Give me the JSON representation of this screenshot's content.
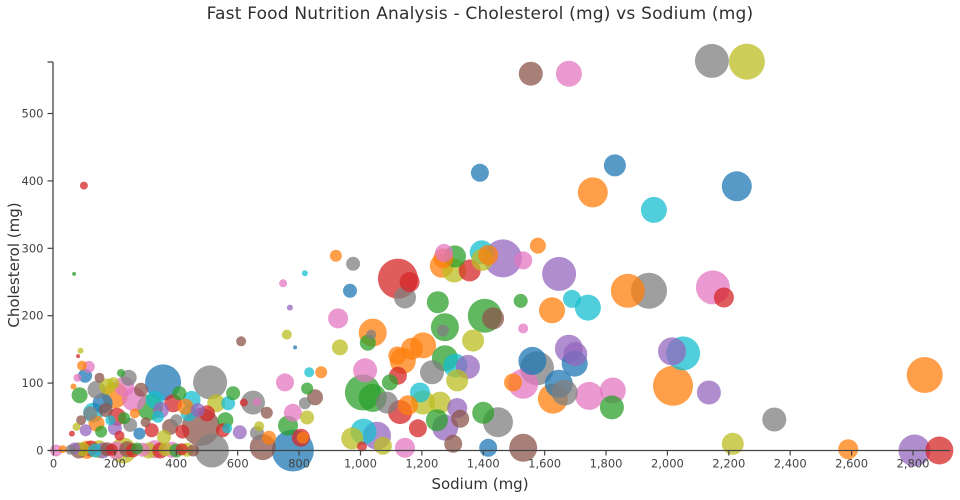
{
  "title": "Fast Food Nutrition Analysis - Cholesterol (mg) vs Sodium (mg)",
  "chart_data": {
    "type": "scatter",
    "subtype": "bubble",
    "title": "Fast Food Nutrition Analysis - Cholesterol (mg) vs Sodium (mg)",
    "xlabel": "Sodium (mg)",
    "ylabel": "Cholesterol (mg)",
    "xlim": [
      0,
      2920
    ],
    "ylim": [
      0,
      590
    ],
    "x_ticks": [
      0,
      200,
      400,
      600,
      800,
      1000,
      1200,
      1400,
      1600,
      1800,
      2000,
      2200,
      2400,
      2600,
      2800
    ],
    "y_ticks": [
      0,
      100,
      200,
      300,
      400,
      500
    ],
    "grid": false,
    "legend_position": "none",
    "marker_opacity": 0.75,
    "axis_color": "#444444",
    "tick_label_color": "#444444",
    "palette": [
      "#1f77b4",
      "#ff7f0e",
      "#2ca02c",
      "#d62728",
      "#9467bd",
      "#8c564b",
      "#e377c2",
      "#7f7f7f",
      "#bcbd22",
      "#17becf"
    ],
    "point_format": "[sodium_mg, cholesterol_mg, marker_radius_px, palette_color_index]",
    "points": [
      [
        99,
        393,
        4,
        3
      ],
      [
        1555,
        559,
        12,
        5
      ],
      [
        1679,
        559,
        13,
        6
      ],
      [
        2145,
        578,
        17,
        7
      ],
      [
        2259,
        577,
        18,
        8
      ],
      [
        1389,
        412,
        9,
        0
      ],
      [
        1829,
        423,
        11,
        0
      ],
      [
        1757,
        383,
        15,
        1
      ],
      [
        1956,
        357,
        13,
        9
      ],
      [
        2226,
        392,
        15,
        0
      ],
      [
        920,
        289,
        6,
        1
      ],
      [
        976,
        277,
        7,
        7
      ],
      [
        819,
        263,
        3,
        9
      ],
      [
        748,
        248,
        4,
        6
      ],
      [
        770,
        212,
        3,
        4
      ],
      [
        67,
        262,
        2,
        2
      ],
      [
        966,
        237,
        7,
        0
      ],
      [
        927,
        196,
        10,
        6
      ],
      [
        1040,
        175,
        14,
        1
      ],
      [
        1035,
        172,
        5,
        7
      ],
      [
        1122,
        255,
        20,
        3
      ],
      [
        1160,
        250,
        10,
        3
      ],
      [
        1145,
        227,
        11,
        7
      ],
      [
        1252,
        220,
        11,
        2
      ],
      [
        1265,
        274,
        12,
        1
      ],
      [
        1305,
        267,
        12,
        8
      ],
      [
        1356,
        267,
        11,
        3
      ],
      [
        1395,
        294,
        12,
        9
      ],
      [
        1464,
        285,
        19,
        4
      ],
      [
        1270,
        285,
        10,
        1
      ],
      [
        1308,
        288,
        11,
        2
      ],
      [
        1272,
        293,
        9,
        6
      ],
      [
        1397,
        283,
        11,
        8
      ],
      [
        1416,
        290,
        10,
        1
      ],
      [
        1405,
        200,
        17,
        2
      ],
      [
        1432,
        196,
        11,
        5
      ],
      [
        1522,
        222,
        7,
        2
      ],
      [
        1578,
        304,
        8,
        1
      ],
      [
        1530,
        282,
        9,
        6
      ],
      [
        1647,
        262,
        17,
        4
      ],
      [
        1624,
        208,
        13,
        1
      ],
      [
        1689,
        225,
        9,
        9
      ],
      [
        1741,
        212,
        13,
        9
      ],
      [
        1871,
        237,
        17,
        1
      ],
      [
        1940,
        237,
        18,
        7
      ],
      [
        2148,
        242,
        17,
        6
      ],
      [
        2184,
        227,
        10,
        3
      ],
      [
        760,
        172,
        5,
        8
      ],
      [
        611,
        162,
        5,
        5
      ],
      [
        933,
        153,
        8,
        8
      ],
      [
        1024,
        160,
        8,
        2
      ],
      [
        1168,
        151,
        11,
        1
      ],
      [
        1204,
        156,
        13,
        1
      ],
      [
        1275,
        183,
        14,
        2
      ],
      [
        1269,
        178,
        6,
        7
      ],
      [
        1367,
        163,
        11,
        8
      ],
      [
        1530,
        181,
        5,
        6
      ],
      [
        1679,
        151,
        14,
        4
      ],
      [
        1700,
        143,
        12,
        4
      ],
      [
        2051,
        144,
        17,
        9
      ],
      [
        2015,
        147,
        14,
        4
      ],
      [
        1698,
        129,
        13,
        0
      ],
      [
        1575,
        122,
        17,
        7
      ],
      [
        1560,
        133,
        14,
        0
      ],
      [
        1138,
        133,
        13,
        1
      ],
      [
        1120,
        141,
        9,
        1
      ],
      [
        1275,
        137,
        13,
        2
      ],
      [
        1309,
        126,
        12,
        9
      ],
      [
        1233,
        116,
        12,
        7
      ],
      [
        1350,
        124,
        12,
        4
      ],
      [
        1315,
        104,
        11,
        8
      ],
      [
        1015,
        119,
        12,
        6
      ],
      [
        1122,
        111,
        9,
        3
      ],
      [
        1096,
        101,
        8,
        2
      ],
      [
        787,
        153,
        2,
        0
      ],
      [
        833,
        116,
        5,
        9
      ],
      [
        872,
        116,
        6,
        1
      ],
      [
        754,
        101,
        9,
        6
      ],
      [
        1194,
        86,
        10,
        9
      ],
      [
        1204,
        71,
        12,
        8
      ],
      [
        1086,
        71,
        11,
        7
      ],
      [
        1155,
        67,
        10,
        1
      ],
      [
        1259,
        71,
        11,
        8
      ],
      [
        1129,
        57,
        12,
        3
      ],
      [
        1249,
        45,
        11,
        2
      ],
      [
        1276,
        34,
        13,
        4
      ],
      [
        1448,
        42,
        15,
        7
      ],
      [
        1400,
        56,
        11,
        2
      ],
      [
        1315,
        63,
        10,
        4
      ],
      [
        1325,
        47,
        9,
        5
      ],
      [
        1187,
        33,
        9,
        3
      ],
      [
        852,
        79,
        8,
        5
      ],
      [
        826,
        49,
        7,
        8
      ],
      [
        780,
        56,
        9,
        6
      ],
      [
        764,
        37,
        10,
        2
      ],
      [
        806,
        19,
        9,
        3
      ],
      [
        826,
        92,
        6,
        2
      ],
      [
        819,
        70,
        6,
        7
      ],
      [
        812,
        19,
        6,
        1
      ],
      [
        1145,
        4,
        10,
        6
      ],
      [
        1073,
        7,
        9,
        8
      ],
      [
        1005,
        6,
        5,
        3
      ],
      [
        1302,
        10,
        9,
        5
      ],
      [
        1416,
        4,
        9,
        0
      ],
      [
        1054,
        22,
        14,
        4
      ],
      [
        1010,
        28,
        13,
        9
      ],
      [
        973,
        18,
        11,
        8
      ],
      [
        780,
        0,
        21,
        0
      ],
      [
        1008,
        86,
        18,
        2
      ],
      [
        1040,
        78,
        14,
        2
      ],
      [
        1530,
        4,
        14,
        5
      ],
      [
        2213,
        10,
        11,
        8
      ],
      [
        2838,
        112,
        18,
        1
      ],
      [
        2348,
        46,
        12,
        7
      ],
      [
        2589,
        2,
        10,
        1
      ],
      [
        2805,
        0,
        16,
        4
      ],
      [
        2886,
        0,
        14,
        3
      ],
      [
        1497,
        101,
        9,
        1
      ],
      [
        2018,
        96,
        20,
        1
      ],
      [
        2135,
        86,
        12,
        4
      ],
      [
        1530,
        99,
        15,
        6
      ],
      [
        1646,
        99,
        14,
        0
      ],
      [
        1665,
        86,
        13,
        7
      ],
      [
        1627,
        77,
        15,
        1
      ],
      [
        1745,
        81,
        14,
        6
      ],
      [
        1822,
        89,
        13,
        6
      ],
      [
        1819,
        64,
        12,
        2
      ],
      [
        357,
        101,
        18,
        0
      ],
      [
        510,
        101,
        17,
        7
      ],
      [
        200,
        82,
        13,
        1
      ],
      [
        262,
        76,
        12,
        6
      ],
      [
        314,
        64,
        13,
        2
      ],
      [
        129,
        56,
        10,
        9
      ],
      [
        207,
        50,
        9,
        3
      ],
      [
        103,
        111,
        7,
        0
      ],
      [
        93,
        126,
        5,
        1
      ],
      [
        115,
        124,
        6,
        6
      ],
      [
        85,
        82,
        8,
        2
      ],
      [
        480,
        35,
        19,
        5
      ],
      [
        227,
        0,
        13,
        8
      ],
      [
        516,
        0,
        17,
        7
      ],
      [
        682,
        5,
        13,
        5
      ],
      [
        569,
        70,
        7,
        9
      ],
      [
        585,
        85,
        7,
        2
      ],
      [
        620,
        71,
        4,
        3
      ],
      [
        650,
        71,
        12,
        7
      ],
      [
        663,
        72,
        4,
        6
      ],
      [
        695,
        56,
        6,
        5
      ],
      [
        670,
        36,
        5,
        8
      ],
      [
        566,
        33,
        5,
        9
      ],
      [
        552,
        30,
        7,
        3
      ],
      [
        607,
        27,
        7,
        4
      ],
      [
        663,
        26,
        7,
        7
      ],
      [
        702,
        19,
        7,
        1
      ],
      [
        60,
        25,
        3,
        3
      ],
      [
        75,
        35,
        4,
        8
      ],
      [
        90,
        45,
        5,
        5
      ],
      [
        105,
        30,
        6,
        4
      ],
      [
        120,
        55,
        7,
        7
      ],
      [
        140,
        40,
        8,
        1
      ],
      [
        155,
        28,
        6,
        2
      ],
      [
        170,
        60,
        7,
        5
      ],
      [
        185,
        45,
        5,
        9
      ],
      [
        200,
        33,
        7,
        4
      ],
      [
        215,
        22,
        5,
        3
      ],
      [
        230,
        48,
        6,
        2
      ],
      [
        250,
        38,
        7,
        7
      ],
      [
        265,
        55,
        5,
        1
      ],
      [
        280,
        25,
        6,
        0
      ],
      [
        300,
        42,
        5,
        5
      ],
      [
        320,
        30,
        7,
        3
      ],
      [
        340,
        50,
        6,
        9
      ],
      [
        360,
        20,
        7,
        8
      ],
      [
        380,
        35,
        8,
        5
      ],
      [
        400,
        45,
        6,
        7
      ],
      [
        420,
        28,
        7,
        3
      ],
      [
        440,
        55,
        8,
        9
      ],
      [
        65,
        95,
        3,
        1
      ],
      [
        78,
        108,
        4,
        6
      ],
      [
        140,
        90,
        9,
        7
      ],
      [
        160,
        70,
        10,
        0
      ],
      [
        175,
        95,
        8,
        8
      ],
      [
        230,
        95,
        10,
        6
      ],
      [
        245,
        108,
        8,
        7
      ],
      [
        285,
        90,
        7,
        5
      ],
      [
        330,
        75,
        9,
        9
      ],
      [
        350,
        60,
        8,
        4
      ],
      [
        390,
        70,
        9,
        3
      ],
      [
        410,
        85,
        7,
        2
      ],
      [
        430,
        65,
        8,
        1
      ],
      [
        450,
        75,
        9,
        9
      ],
      [
        470,
        60,
        7,
        4
      ],
      [
        500,
        55,
        8,
        3
      ],
      [
        530,
        70,
        9,
        8
      ],
      [
        560,
        45,
        8,
        2
      ],
      [
        8,
        0,
        6,
        6
      ],
      [
        30,
        2,
        4,
        1
      ],
      [
        55,
        1,
        5,
        7
      ],
      [
        68,
        3,
        6,
        4
      ],
      [
        82,
        0,
        8,
        5
      ],
      [
        95,
        2,
        7,
        8
      ],
      [
        108,
        1,
        9,
        1
      ],
      [
        122,
        3,
        8,
        3
      ],
      [
        135,
        0,
        7,
        9
      ],
      [
        148,
        2,
        9,
        8
      ],
      [
        160,
        0,
        8,
        4
      ],
      [
        175,
        2,
        7,
        5
      ],
      [
        190,
        1,
        6,
        3
      ],
      [
        205,
        0,
        9,
        6
      ],
      [
        240,
        2,
        8,
        5
      ],
      [
        258,
        0,
        7,
        3
      ],
      [
        272,
        3,
        6,
        2
      ],
      [
        290,
        1,
        7,
        6
      ],
      [
        310,
        0,
        8,
        8
      ],
      [
        330,
        2,
        9,
        6
      ],
      [
        348,
        0,
        8,
        3
      ],
      [
        365,
        2,
        7,
        8
      ],
      [
        385,
        1,
        8,
        6
      ],
      [
        400,
        0,
        7,
        2
      ],
      [
        418,
        2,
        6,
        3
      ],
      [
        435,
        1,
        7,
        8
      ],
      [
        455,
        0,
        6,
        5
      ],
      [
        80,
        140,
        2,
        3
      ],
      [
        88,
        148,
        3,
        8
      ],
      [
        150,
        108,
        5,
        5
      ],
      [
        220,
        115,
        4,
        2
      ],
      [
        195,
        100,
        6,
        8
      ]
    ]
  }
}
